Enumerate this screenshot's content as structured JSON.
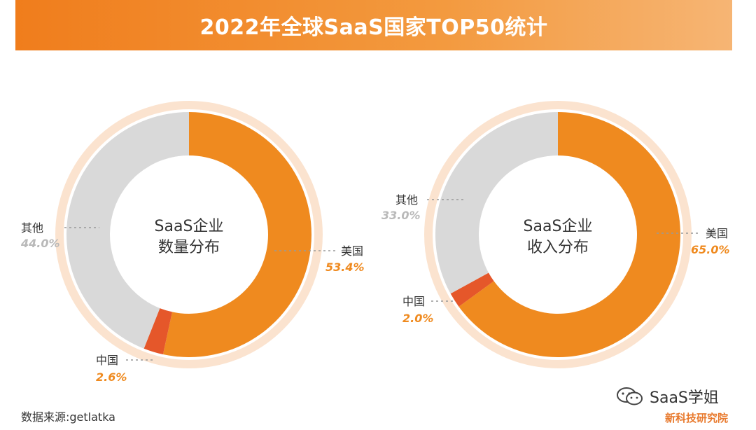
{
  "header": {
    "title": "2022年全球SaaS国家TOP50统计"
  },
  "footer": {
    "source": "数据来源:getlatka",
    "brand": "新科技研究院",
    "wechat_account": "SaaS学姐"
  },
  "colors": {
    "us": "#ef8a1f",
    "china": "#e5572a",
    "other": "#d9d9d9",
    "outer_ring": "#fbe3cf",
    "us_pct": "#ef8a1f",
    "other_pct": "#b9b9b9"
  },
  "chart_data": [
    {
      "type": "pie",
      "center_label": [
        "SaaS企业",
        "数量分布"
      ],
      "slices": [
        {
          "name": "美国",
          "value": 53.4,
          "label": "53.4%"
        },
        {
          "name": "中国",
          "value": 2.6,
          "label": "2.6%"
        },
        {
          "name": "其他",
          "value": 44.0,
          "label": "44.0%"
        }
      ]
    },
    {
      "type": "pie",
      "center_label": [
        "SaaS企业",
        "收入分布"
      ],
      "slices": [
        {
          "name": "美国",
          "value": 65.0,
          "label": "65.0%"
        },
        {
          "name": "中国",
          "value": 2.0,
          "label": "2.0%"
        },
        {
          "name": "其他",
          "value": 33.0,
          "label": "33.0%"
        }
      ]
    }
  ]
}
